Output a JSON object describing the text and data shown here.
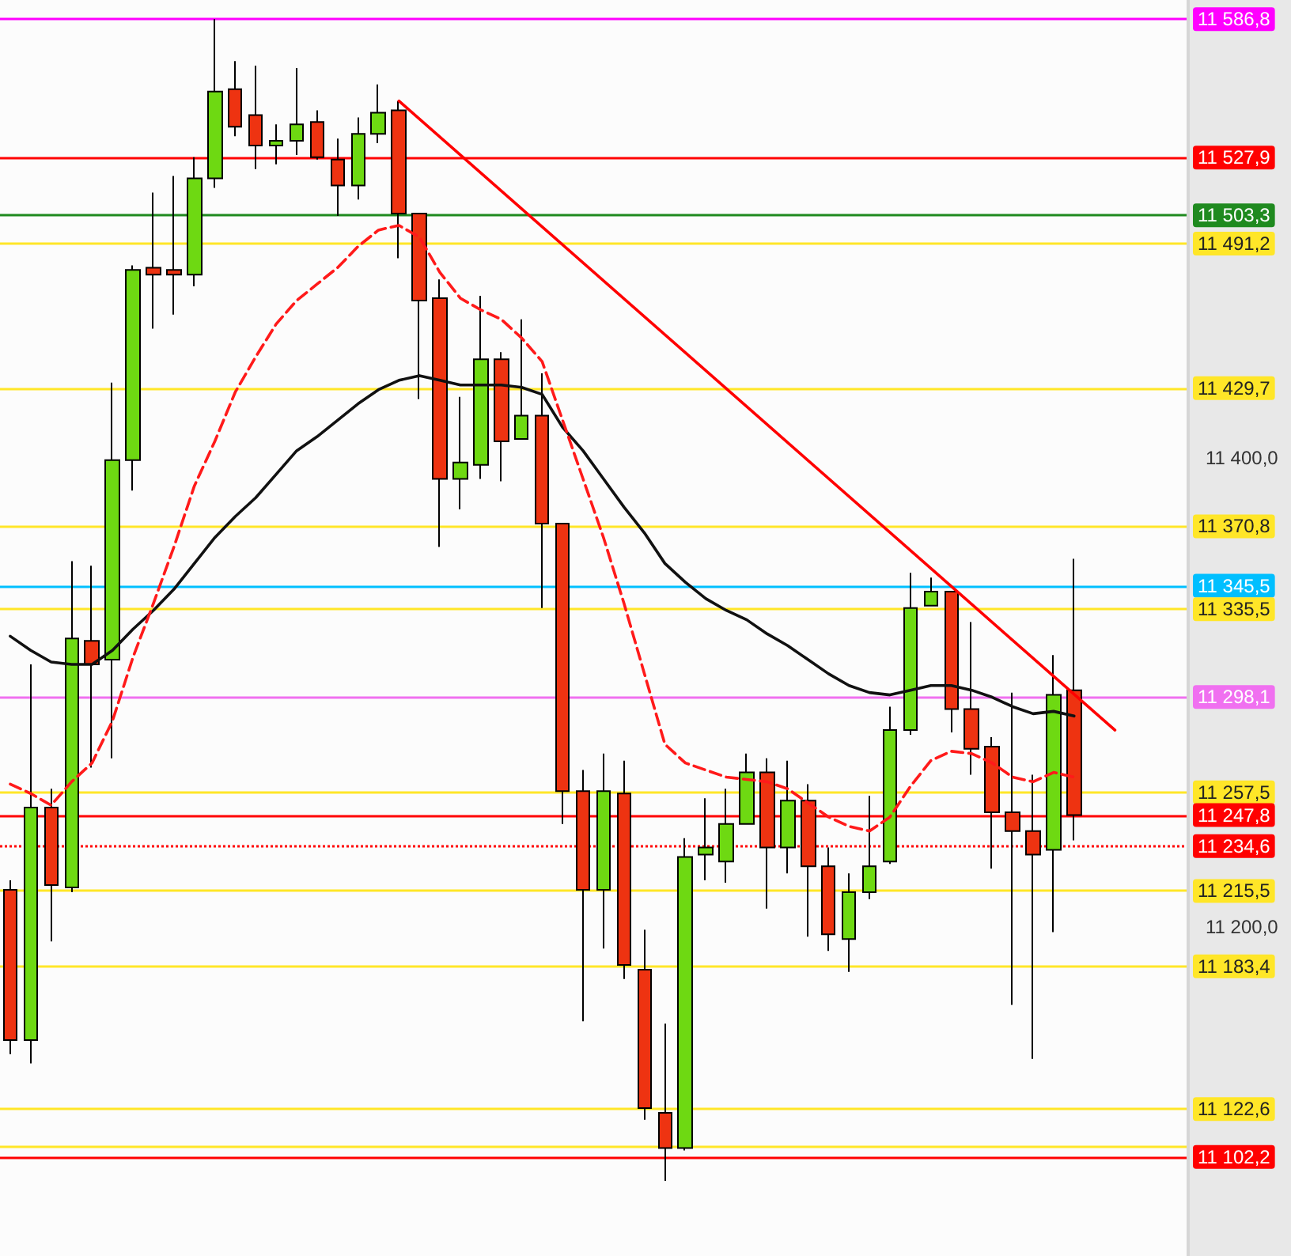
{
  "chart_data": {
    "type": "candlestick",
    "categories": [
      null,
      null,
      null,
      null,
      null,
      null,
      null,
      null,
      null,
      null,
      null,
      null,
      null,
      null,
      null,
      null,
      null,
      null,
      null,
      null,
      null,
      null,
      null,
      null,
      null,
      null,
      null,
      null,
      null,
      null,
      null,
      null,
      null,
      null,
      null,
      null,
      null,
      null,
      null,
      null,
      null,
      null,
      null,
      null,
      null,
      null,
      null,
      null,
      null,
      null,
      null,
      null,
      null,
      null,
      null,
      null,
      null,
      null
    ],
    "ohlc": [
      [
        11216,
        11220,
        11146,
        11152
      ],
      [
        11152,
        11312,
        11142,
        11251
      ],
      [
        11251,
        11259,
        11194,
        11218
      ],
      [
        11217,
        11356,
        11215,
        11323
      ],
      [
        11322,
        11354,
        11268,
        11312
      ],
      [
        11314,
        11432,
        11272,
        11399
      ],
      [
        11399,
        11482,
        11386,
        11480
      ],
      [
        11481,
        11513,
        11455,
        11478
      ],
      [
        11480,
        11520,
        11461,
        11478
      ],
      [
        11478,
        11528,
        11473,
        11519
      ],
      [
        11519,
        11586.8,
        11515,
        11556
      ],
      [
        11557,
        11569,
        11537,
        11541
      ],
      [
        11546,
        11567,
        11523,
        11533
      ],
      [
        11533,
        11542,
        11525,
        11535
      ],
      [
        11535,
        11566,
        11529,
        11542
      ],
      [
        11543,
        11548,
        11527,
        11528
      ],
      [
        11527,
        11536,
        11503,
        11516
      ],
      [
        11516,
        11545,
        11510,
        11538
      ],
      [
        11538,
        11559,
        11534,
        11547
      ],
      [
        11548,
        11552,
        11485,
        11504
      ],
      [
        11504,
        11504,
        11425,
        11467
      ],
      [
        11468,
        11476,
        11362,
        11391
      ],
      [
        11391,
        11426,
        11378,
        11398
      ],
      [
        11397,
        11469,
        11391,
        11442
      ],
      [
        11442,
        11445,
        11390,
        11407
      ],
      [
        11408,
        11459,
        11408,
        11418
      ],
      [
        11418,
        11436,
        11336,
        11372
      ],
      [
        11372,
        11372,
        11244,
        11258
      ],
      [
        11258,
        11267,
        11160,
        11216
      ],
      [
        11216,
        11274,
        11191,
        11258
      ],
      [
        11257,
        11271,
        11178,
        11184
      ],
      [
        11182,
        11199,
        11118,
        11123
      ],
      [
        11121,
        11159,
        11092,
        11106
      ],
      [
        11106,
        11238,
        11105,
        11230
      ],
      [
        11231,
        11255,
        11220,
        11234
      ],
      [
        11228,
        11259,
        11219,
        11244
      ],
      [
        11244,
        11274,
        11244,
        11266
      ],
      [
        11266,
        11272,
        11208,
        11234
      ],
      [
        11234,
        11271,
        11223,
        11254
      ],
      [
        11254,
        11261,
        11196,
        11226
      ],
      [
        11226,
        11234,
        11190,
        11197
      ],
      [
        11195,
        11223,
        11181,
        11215
      ],
      [
        11215,
        11256,
        11212,
        11226
      ],
      [
        11228,
        11294,
        11227,
        11284
      ],
      [
        11284,
        11351,
        11282,
        11336
      ],
      [
        11337,
        11349,
        11337,
        11343
      ],
      [
        11343,
        11343,
        11283,
        11293
      ],
      [
        11293,
        11330,
        11265,
        11276
      ],
      [
        11277,
        11281,
        11225,
        11249
      ],
      [
        11249,
        11300,
        11167,
        11241
      ],
      [
        11241,
        11265,
        11144,
        11231
      ],
      [
        11233,
        11316,
        11198,
        11299
      ],
      [
        11301,
        11357,
        11237,
        11247.8
      ],
      null,
      null,
      null,
      null,
      null
    ],
    "colors": [
      "#ee3311",
      "#6ed912",
      "#ee3311",
      "#6ed912",
      "#ee3311",
      "#6ed912",
      "#6ed912",
      "#ee3311",
      "#ee3311",
      "#6ed912",
      "#6ed912",
      "#ee3311",
      "#ee3311",
      "#6ed912",
      "#6ed912",
      "#ee3311",
      "#ee3311",
      "#6ed912",
      "#6ed912",
      "#ee3311",
      "#ee3311",
      "#ee3311",
      "#6ed912",
      "#6ed912",
      "#ee3311",
      "#6ed912",
      "#ee3311",
      "#ee3311",
      "#ee3311",
      "#6ed912",
      "#ee3311",
      "#ee3311",
      "#ee3311",
      "#6ed912",
      "#6ed912",
      "#6ed912",
      "#6ed912",
      "#ee3311",
      "#6ed912",
      "#ee3311",
      "#ee3311",
      "#6ed912",
      "#6ed912",
      "#6ed912",
      "#6ed912",
      "#6ed912",
      "#ee3311",
      "#ee3311",
      "#ee3311",
      "#ee3311",
      "#ee3311",
      "#6ed912",
      "#ee3311",
      null,
      null,
      null,
      null,
      null
    ],
    "series": [
      {
        "type": "line",
        "color": "#111111",
        "values": [
          11324,
          11318,
          11313,
          11312,
          11312,
          11318,
          11327,
          11335,
          11344,
          11355,
          11366,
          11375,
          11383,
          11393,
          11403,
          11409,
          11416,
          11423,
          11429,
          11433,
          11435,
          11433,
          11431,
          11431,
          11431,
          11430,
          11427,
          11413,
          11403,
          11391,
          11379,
          11368,
          11355,
          11347,
          11340,
          11335,
          11331,
          11325,
          11320,
          11314,
          11308,
          11303,
          11300,
          11299,
          11301,
          11303,
          11303,
          11301,
          11298,
          11294,
          11291,
          11292,
          11290,
          null,
          null,
          null,
          null,
          null
        ]
      },
      {
        "type": "line",
        "color": "#ff1a1a",
        "line_style": "dashed",
        "values": [
          11261,
          11257,
          11252,
          11262,
          11270,
          11288,
          11315,
          11338,
          11362,
          11388,
          11407,
          11428,
          11443,
          11457,
          11467,
          11474,
          11481,
          11490,
          11497,
          11499,
          11494,
          11479,
          11468,
          11463,
          11459,
          11451,
          11441,
          11416,
          11391,
          11366,
          11338,
          11308,
          11278,
          11270,
          11267,
          11264,
          11263,
          11262,
          11259,
          11253,
          11247,
          11243,
          11241,
          11247,
          11260,
          11271,
          11275,
          11274,
          11270,
          11264,
          11262,
          11266,
          11264,
          null,
          null,
          null,
          null,
          null
        ]
      },
      {
        "type": "line",
        "color": "#ff0000",
        "values": [
          null,
          null,
          null,
          null,
          null,
          null,
          null,
          null,
          null,
          null,
          null,
          null,
          null,
          null,
          null,
          null,
          null,
          null,
          null,
          11552,
          null,
          null,
          null,
          null,
          null,
          null,
          null,
          null,
          null,
          null,
          null,
          null,
          null,
          null,
          null,
          null,
          null,
          null,
          null,
          null,
          null,
          null,
          null,
          null,
          null,
          null,
          null,
          null,
          null,
          null,
          null,
          null,
          null,
          null,
          11284,
          null,
          null,
          null
        ]
      }
    ],
    "ylim": [
      11060,
      11595
    ],
    "yticks": [
      {
        "value": 11200,
        "label": "11 200,0"
      },
      {
        "value": 11400,
        "label": "11 400,0"
      }
    ],
    "tick_labels": "y",
    "ref_lines": [
      {
        "axis": "y",
        "value": 11586.8,
        "label": "11 586,8",
        "color": "#ff00ff"
      },
      {
        "axis": "y",
        "value": 11527.9,
        "label": "11 527,9",
        "color": "#ff0000"
      },
      {
        "axis": "y",
        "value": 11503.3,
        "label": "11 503,3",
        "color": "#1f8a1f"
      },
      {
        "axis": "y",
        "value": 11491.2,
        "label": "11 491,2",
        "color": "#ffe628"
      },
      {
        "axis": "y",
        "value": 11429.7,
        "label": "11 429,7",
        "color": "#ffe628"
      },
      {
        "axis": "y",
        "value": 11370.8,
        "label": "11 370,8",
        "color": "#ffe628"
      },
      {
        "axis": "y",
        "value": 11345.5,
        "label": "11 345,5",
        "color": "#00bfff"
      },
      {
        "axis": "y",
        "value": 11335.5,
        "label": "11 335,5",
        "color": "#ffe628"
      },
      {
        "axis": "y",
        "value": 11298.1,
        "label": "11 298,1",
        "color": "#f070f0"
      },
      {
        "axis": "y",
        "value": 11257.5,
        "label": "11 257,5",
        "color": "#ffe628"
      },
      {
        "axis": "y",
        "value": 11247.8,
        "label": "11 247,8",
        "color": "#ff0000"
      },
      {
        "axis": "y",
        "value": 11234.6,
        "label": "11 234,6",
        "color": "#ff0000",
        "line_style": "dotted"
      },
      {
        "axis": "y",
        "value": 11215.5,
        "label": "11 215,5",
        "color": "#ffe628"
      },
      {
        "axis": "y",
        "value": 11183.4,
        "label": "11 183,4",
        "color": "#ffe628"
      },
      {
        "axis": "y",
        "value": 11122.6,
        "label": "11 122,6",
        "color": "#ffe628"
      },
      {
        "axis": "y",
        "value": 11106.5,
        "label": null,
        "color": "#ffe628"
      },
      {
        "axis": "y",
        "value": 11102.2,
        "label": "11 102,2",
        "color": "#ff0000"
      }
    ]
  }
}
